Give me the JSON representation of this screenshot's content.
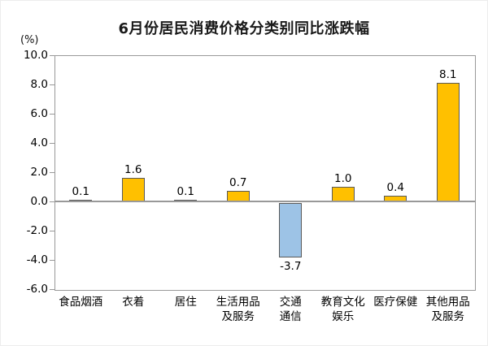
{
  "chart_data": {
    "type": "bar",
    "title": "6月份居民消费价格分类别同比涨跌幅",
    "unit_label": "(%)",
    "categories": [
      "食品烟酒",
      "衣着",
      "居住",
      "生活用品及服务",
      "交通通信",
      "教育文化娱乐",
      "医疗保健",
      "其他用品及服务"
    ],
    "category_lines": [
      [
        "食品烟酒"
      ],
      [
        "衣着"
      ],
      [
        "居住"
      ],
      [
        "生活用品",
        "及服务"
      ],
      [
        "交通",
        "通信"
      ],
      [
        "教育文化",
        "娱乐"
      ],
      [
        "医疗保健"
      ],
      [
        "其他用品",
        "及服务"
      ]
    ],
    "values": [
      0.1,
      1.6,
      0.1,
      0.7,
      -3.7,
      1.0,
      0.4,
      8.1
    ],
    "data_labels": [
      "0.1",
      "1.6",
      "0.1",
      "0.7",
      "-3.7",
      "1.0",
      "0.4",
      "8.1"
    ],
    "ylim": [
      -6.0,
      10.0
    ],
    "ytick_step": 2.0,
    "yticks": [
      "10.0",
      "8.0",
      "6.0",
      "4.0",
      "2.0",
      "0.0",
      "-2.0",
      "-4.0",
      "-6.0"
    ],
    "grid": false,
    "legend": "none",
    "xlabel": "",
    "ylabel": "(%)",
    "colors": {
      "positive_bar": "#FFC000",
      "negative_bar": "#9DC3E6",
      "bar_border": "#595959",
      "plot_border": "#999999",
      "zero_line": "#999999",
      "title_text": "#1a1a1a",
      "axis_text": "#000000",
      "background": "#ffffff"
    }
  }
}
